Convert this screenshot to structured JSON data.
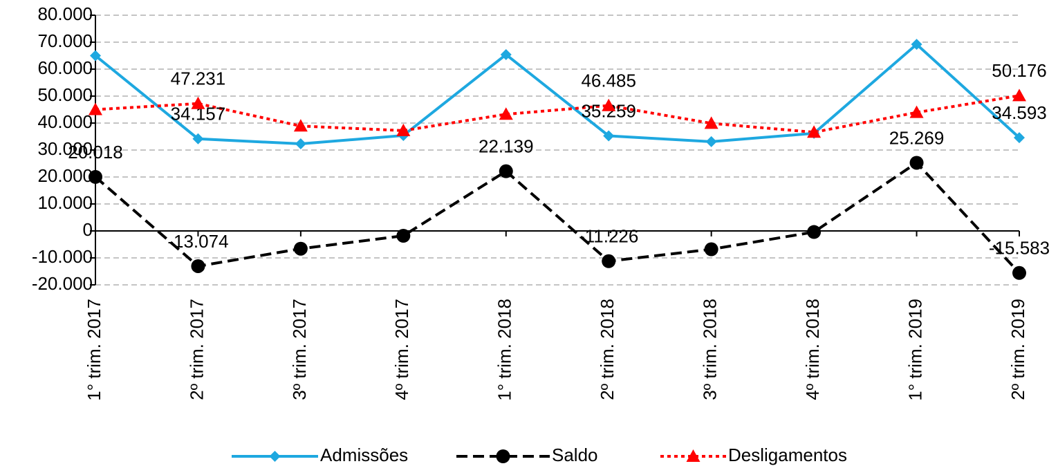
{
  "chart_data": {
    "type": "line",
    "categories": [
      "1° trim. 2017",
      "2º trim. 2017",
      "3º trim. 2017",
      "4º trim. 2017",
      "1° trim. 2018",
      "2º trim. 2018",
      "3º trim. 2018",
      "4º trim. 2018",
      "1° trim. 2019",
      "2º trim. 2019"
    ],
    "series": [
      {
        "name": "Admissões",
        "color": "#1ea8e0",
        "dash": "solid",
        "marker": "diamond",
        "values": [
          65000,
          34157,
          32300,
          35400,
          65400,
          35259,
          33100,
          36200,
          69200,
          34593
        ],
        "value_labels": [
          null,
          "34.157",
          null,
          null,
          null,
          "35.259",
          null,
          null,
          null,
          "34.593"
        ]
      },
      {
        "name": "Saldo",
        "color": "#000000",
        "dash": "dashed",
        "marker": "circle",
        "values": [
          20018,
          -13074,
          -6600,
          -1800,
          22139,
          -11226,
          -6800,
          -400,
          25269,
          -15583
        ],
        "value_labels": [
          "20.018",
          "-13.074",
          null,
          null,
          "22.139",
          "-11.226",
          null,
          null,
          "25.269",
          "-15.583"
        ]
      },
      {
        "name": "Desligamentos",
        "color": "#ff0000",
        "dash": "dotted",
        "marker": "triangle",
        "values": [
          45000,
          47231,
          38900,
          37200,
          43261,
          46485,
          39900,
          36600,
          43931,
          50176
        ],
        "value_labels": [
          null,
          "47.231",
          null,
          null,
          null,
          "46.485",
          null,
          null,
          null,
          "50.176"
        ]
      }
    ],
    "ylim": [
      -20000,
      80000
    ],
    "yticks": [
      {
        "value": -20000,
        "label": "-20.000"
      },
      {
        "value": -10000,
        "label": "-10.000"
      },
      0,
      {
        "value": 10000,
        "label": "10.000"
      },
      {
        "value": 20000,
        "label": "20.000"
      },
      {
        "value": 30000,
        "label": "30.000"
      },
      {
        "value": 40000,
        "label": "40.000"
      },
      {
        "value": 50000,
        "label": "50.000"
      },
      {
        "value": 60000,
        "label": "60.000"
      },
      {
        "value": 70000,
        "label": "70.000"
      },
      {
        "value": 80000,
        "label": "80.000"
      }
    ],
    "grid": true,
    "legend": "bottom"
  }
}
